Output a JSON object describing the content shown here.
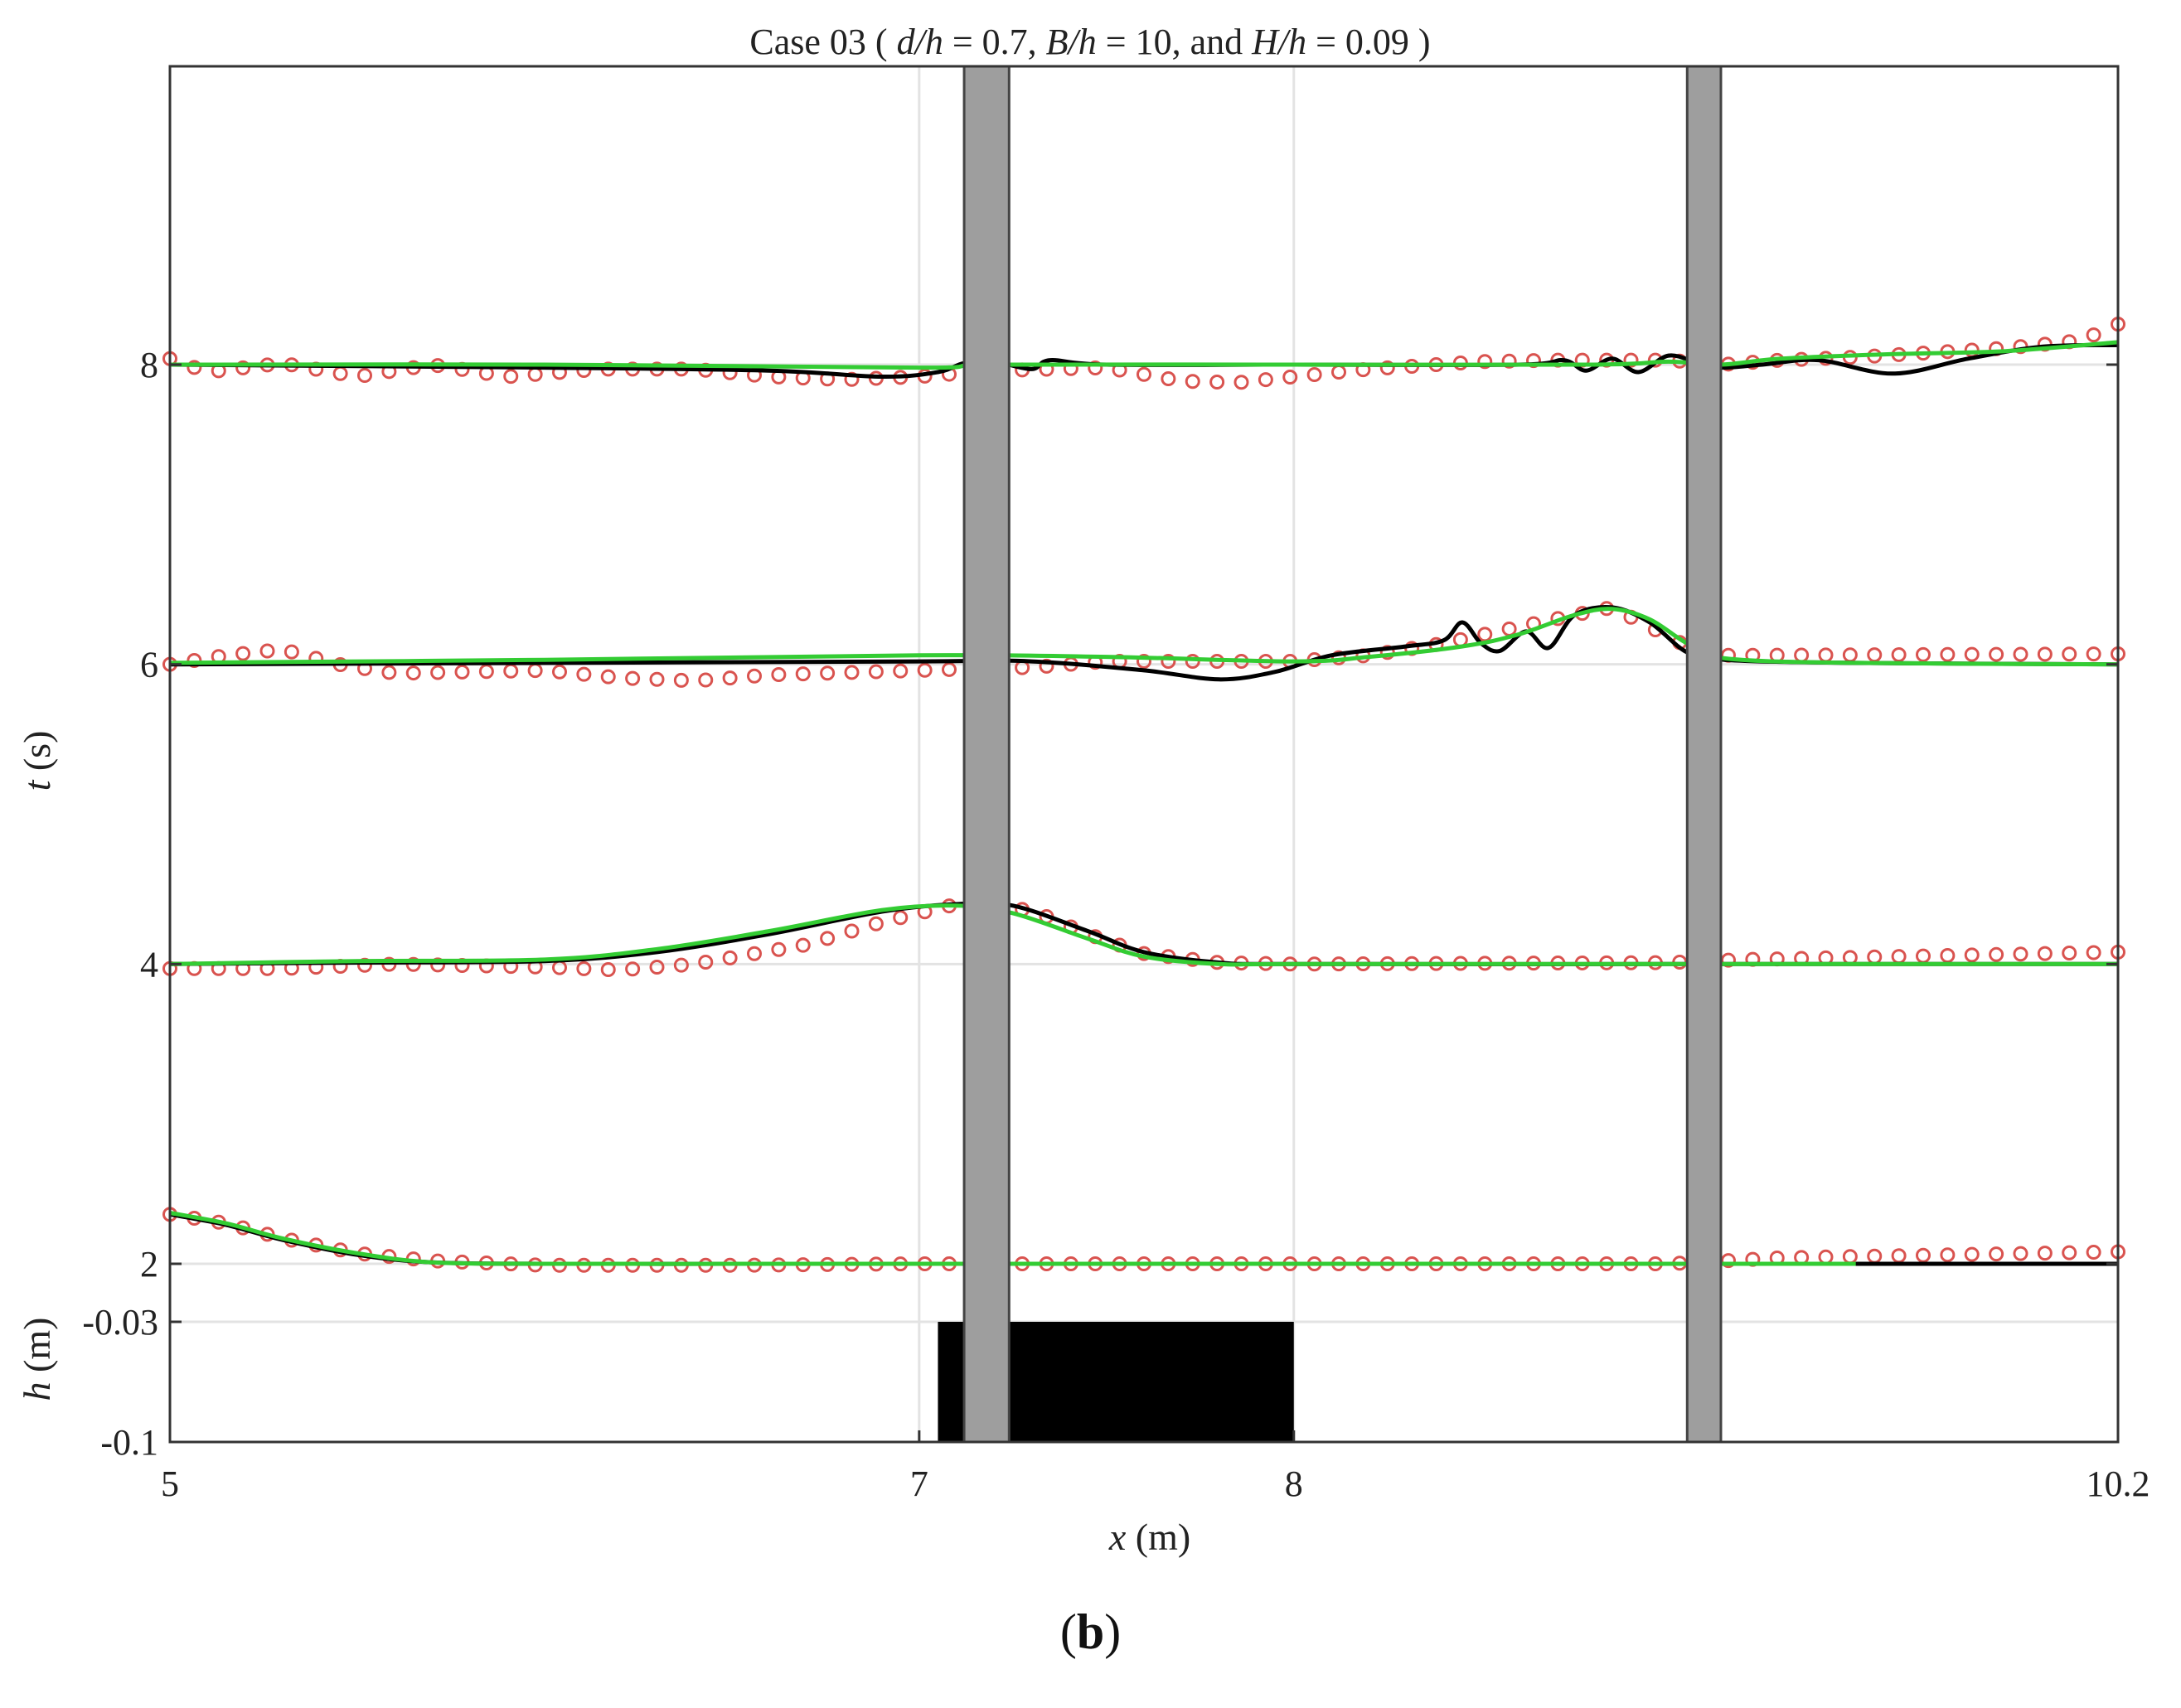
{
  "chart_data": {
    "type": "line",
    "title_parts": {
      "lead": "Case 03 ( ",
      "d": "d/h",
      "d_val": " = 0.7, ",
      "B": "B/h",
      "B_val": " = 10, and ",
      "H": "H/h",
      "H_val": " = 0.09 )"
    },
    "xlabel_var": "x",
    "xlabel_unit": " (m)",
    "ylabel_t_var": "t",
    "ylabel_t_unit": " (s)",
    "ylabel_h_var": "h",
    "ylabel_h_unit": " (m)",
    "x_ticks": [
      {
        "value": 5,
        "label": "5"
      },
      {
        "value": 7,
        "label": "7"
      },
      {
        "value": 8,
        "label": "8"
      },
      {
        "value": 10.2,
        "label": "10.2"
      }
    ],
    "t_ticks": [
      {
        "value": 2,
        "label": "2"
      },
      {
        "value": 4,
        "label": "4"
      },
      {
        "value": 6,
        "label": "6"
      },
      {
        "value": 8,
        "label": "8"
      }
    ],
    "h_ticks": [
      {
        "value": -0.03,
        "label": "-0.03"
      },
      {
        "value": -0.1,
        "label": "-0.1"
      }
    ],
    "grid": true,
    "bathymetry": {
      "x_start": 7.05,
      "x_end": 8.0,
      "top": -0.03
    },
    "pillars": [
      {
        "x_start": 7.12,
        "x_end": 7.24
      },
      {
        "x_start": 9.05,
        "x_end": 9.14
      }
    ],
    "series": [
      {
        "t": 2,
        "color_obs": "#d9534f",
        "color_black": "#000000",
        "color_green": "#33cc33",
        "black": [
          [
            5.0,
            2.33
          ],
          [
            5.15,
            2.26
          ],
          [
            5.3,
            2.16
          ],
          [
            5.5,
            2.06
          ],
          [
            5.7,
            2.01
          ],
          [
            6.0,
            2.0
          ],
          [
            6.5,
            2.0
          ],
          [
            7.0,
            2.0
          ],
          [
            8.0,
            2.0
          ],
          [
            9.0,
            2.0
          ],
          [
            9.5,
            2.0
          ],
          [
            10.2,
            2.0
          ]
        ],
        "green": [
          [
            5.0,
            2.34
          ],
          [
            5.15,
            2.27
          ],
          [
            5.3,
            2.17
          ],
          [
            5.5,
            2.07
          ],
          [
            5.7,
            2.01
          ],
          [
            6.0,
            2.0
          ],
          [
            6.5,
            2.0
          ],
          [
            7.0,
            2.0
          ],
          [
            8.0,
            2.0
          ],
          [
            9.0,
            2.0
          ],
          [
            9.5,
            2.0
          ]
        ],
        "obs_x_start": 5.0,
        "obs_x_end": 10.2,
        "obs_count": 81,
        "obs": [
          [
            5.0,
            2.33
          ],
          [
            5.15,
            2.27
          ],
          [
            5.3,
            2.17
          ],
          [
            5.5,
            2.07
          ],
          [
            5.7,
            2.02
          ],
          [
            6.0,
            1.99
          ],
          [
            6.5,
            1.99
          ],
          [
            7.0,
            2.0
          ],
          [
            7.5,
            2.0
          ],
          [
            8.0,
            2.0
          ],
          [
            8.5,
            2.0
          ],
          [
            9.0,
            2.0
          ],
          [
            9.3,
            2.04
          ],
          [
            10.2,
            2.08
          ]
        ]
      },
      {
        "t": 4,
        "color_obs": "#d9534f",
        "color_black": "#000000",
        "color_green": "#33cc33",
        "black": [
          [
            5.0,
            4.0
          ],
          [
            5.5,
            4.01
          ],
          [
            6.0,
            4.02
          ],
          [
            6.3,
            4.08
          ],
          [
            6.6,
            4.2
          ],
          [
            6.9,
            4.35
          ],
          [
            7.1,
            4.4
          ],
          [
            7.25,
            4.39
          ],
          [
            7.45,
            4.22
          ],
          [
            7.6,
            4.08
          ],
          [
            7.8,
            4.01
          ],
          [
            8.0,
            4.0
          ],
          [
            9.0,
            4.0
          ],
          [
            10.2,
            4.0
          ]
        ],
        "green": [
          [
            5.0,
            4.0
          ],
          [
            5.5,
            4.02
          ],
          [
            6.0,
            4.03
          ],
          [
            6.3,
            4.1
          ],
          [
            6.6,
            4.22
          ],
          [
            6.9,
            4.36
          ],
          [
            7.1,
            4.39
          ],
          [
            7.25,
            4.34
          ],
          [
            7.45,
            4.17
          ],
          [
            7.6,
            4.05
          ],
          [
            7.8,
            4.0
          ],
          [
            8.0,
            4.0
          ],
          [
            9.0,
            4.0
          ],
          [
            10.2,
            4.0
          ]
        ],
        "obs_x_start": 5.0,
        "obs_x_end": 10.2,
        "obs_count": 81,
        "obs": [
          [
            5.0,
            3.97
          ],
          [
            5.3,
            3.97
          ],
          [
            5.6,
            4.0
          ],
          [
            6.0,
            3.98
          ],
          [
            6.2,
            3.96
          ],
          [
            6.4,
            4.0
          ],
          [
            6.7,
            4.13
          ],
          [
            6.9,
            4.28
          ],
          [
            7.1,
            4.4
          ],
          [
            7.3,
            4.36
          ],
          [
            7.45,
            4.2
          ],
          [
            7.6,
            4.07
          ],
          [
            7.8,
            4.01
          ],
          [
            8.0,
            4.0
          ],
          [
            9.0,
            4.01
          ],
          [
            9.2,
            4.03
          ],
          [
            10.2,
            4.08
          ]
        ]
      },
      {
        "t": 6,
        "color_obs": "#d9534f",
        "color_black": "#000000",
        "color_green": "#33cc33",
        "black": [
          [
            5.0,
            6.0
          ],
          [
            6.0,
            6.01
          ],
          [
            7.0,
            6.02
          ],
          [
            7.3,
            6.02
          ],
          [
            7.6,
            5.96
          ],
          [
            7.8,
            5.9
          ],
          [
            7.95,
            5.95
          ],
          [
            8.1,
            6.06
          ],
          [
            8.3,
            6.12
          ],
          [
            8.4,
            6.16
          ],
          [
            8.45,
            6.28
          ],
          [
            8.5,
            6.14
          ],
          [
            8.55,
            6.09
          ],
          [
            8.62,
            6.22
          ],
          [
            8.68,
            6.11
          ],
          [
            8.75,
            6.33
          ],
          [
            8.85,
            6.38
          ],
          [
            8.95,
            6.28
          ],
          [
            9.05,
            6.08
          ],
          [
            9.15,
            6.03
          ],
          [
            9.5,
            6.01
          ],
          [
            10.2,
            6.0
          ]
        ],
        "green": [
          [
            5.0,
            6.01
          ],
          [
            6.0,
            6.03
          ],
          [
            7.0,
            6.06
          ],
          [
            7.5,
            6.05
          ],
          [
            8.0,
            6.02
          ],
          [
            8.2,
            6.05
          ],
          [
            8.45,
            6.12
          ],
          [
            8.6,
            6.2
          ],
          [
            8.75,
            6.33
          ],
          [
            8.85,
            6.37
          ],
          [
            8.95,
            6.3
          ],
          [
            9.05,
            6.14
          ],
          [
            9.15,
            6.04
          ],
          [
            9.5,
            6.01
          ],
          [
            10.2,
            6.0
          ]
        ],
        "obs_x_start": 5.0,
        "obs_x_end": 10.2,
        "obs_count": 81,
        "obs": [
          [
            5.0,
            6.0
          ],
          [
            5.15,
            6.06
          ],
          [
            5.3,
            6.1
          ],
          [
            5.45,
            6.0
          ],
          [
            5.6,
            5.94
          ],
          [
            6.0,
            5.96
          ],
          [
            6.2,
            5.91
          ],
          [
            6.4,
            5.89
          ],
          [
            6.6,
            5.93
          ],
          [
            7.0,
            5.96
          ],
          [
            7.3,
            5.98
          ],
          [
            7.5,
            6.02
          ],
          [
            7.7,
            6.02
          ],
          [
            8.0,
            6.02
          ],
          [
            8.2,
            6.06
          ],
          [
            8.4,
            6.14
          ],
          [
            8.6,
            6.25
          ],
          [
            8.75,
            6.33
          ],
          [
            8.85,
            6.38
          ],
          [
            8.95,
            6.25
          ],
          [
            9.05,
            6.12
          ],
          [
            9.15,
            6.06
          ],
          [
            10.2,
            6.07
          ]
        ]
      },
      {
        "t": 8,
        "color_obs": "#d9534f",
        "color_black": "#000000",
        "color_green": "#33cc33",
        "black": [
          [
            5.0,
            8.0
          ],
          [
            6.0,
            7.98
          ],
          [
            6.6,
            7.96
          ],
          [
            6.9,
            7.92
          ],
          [
            7.05,
            7.95
          ],
          [
            7.12,
            8.01
          ],
          [
            7.2,
            8.02
          ],
          [
            7.3,
            7.97
          ],
          [
            7.35,
            8.03
          ],
          [
            7.5,
            8.0
          ],
          [
            8.0,
            8.0
          ],
          [
            8.6,
            8.0
          ],
          [
            8.72,
            8.03
          ],
          [
            8.78,
            7.96
          ],
          [
            8.85,
            8.04
          ],
          [
            8.92,
            7.95
          ],
          [
            9.0,
            8.06
          ],
          [
            9.08,
            8.01
          ],
          [
            9.14,
            7.98
          ],
          [
            9.25,
            8.0
          ],
          [
            9.4,
            8.03
          ],
          [
            9.6,
            7.94
          ],
          [
            9.8,
            8.04
          ],
          [
            10.0,
            8.12
          ],
          [
            10.2,
            8.13
          ]
        ],
        "green": [
          [
            5.0,
            8.0
          ],
          [
            6.0,
            8.0
          ],
          [
            7.0,
            7.98
          ],
          [
            7.2,
            8.0
          ],
          [
            8.0,
            8.0
          ],
          [
            8.8,
            8.0
          ],
          [
            9.0,
            8.02
          ],
          [
            9.14,
            8.0
          ],
          [
            9.3,
            8.04
          ],
          [
            9.6,
            8.07
          ],
          [
            9.9,
            8.09
          ],
          [
            10.2,
            8.15
          ]
        ],
        "obs_x_start": 5.0,
        "obs_x_end": 10.2,
        "obs_count": 81,
        "obs": [
          [
            5.0,
            8.04
          ],
          [
            5.1,
            7.95
          ],
          [
            5.3,
            8.01
          ],
          [
            5.5,
            7.92
          ],
          [
            5.7,
            8.0
          ],
          [
            5.9,
            7.92
          ],
          [
            6.15,
            7.97
          ],
          [
            6.4,
            7.97
          ],
          [
            6.6,
            7.92
          ],
          [
            6.8,
            7.9
          ],
          [
            7.0,
            7.92
          ],
          [
            7.2,
            7.96
          ],
          [
            7.5,
            7.98
          ],
          [
            7.7,
            7.89
          ],
          [
            7.85,
            7.88
          ],
          [
            8.0,
            7.92
          ],
          [
            8.2,
            7.97
          ],
          [
            8.5,
            8.02
          ],
          [
            8.7,
            8.03
          ],
          [
            9.0,
            8.03
          ],
          [
            9.14,
            8.0
          ],
          [
            9.3,
            8.03
          ],
          [
            9.5,
            8.05
          ],
          [
            9.7,
            8.08
          ],
          [
            9.9,
            8.11
          ],
          [
            10.1,
            8.16
          ],
          [
            10.2,
            8.27
          ]
        ]
      }
    ]
  },
  "caption": {
    "open": "(",
    "letter": "b",
    "close": ")"
  }
}
